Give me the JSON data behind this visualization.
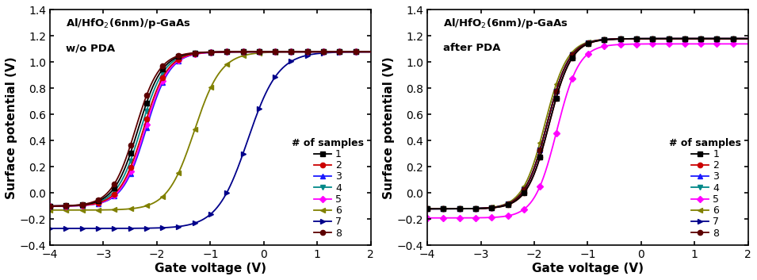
{
  "xlabel": "Gate voltage (V)",
  "ylabel": "Surface potential (V)",
  "legend_title": "# of samples",
  "xlim": [
    -4,
    2
  ],
  "ylim": [
    -0.4,
    1.4
  ],
  "xticks": [
    -4,
    -3,
    -2,
    -1,
    0,
    1,
    2
  ],
  "yticks": [
    -0.4,
    -0.2,
    0.0,
    0.2,
    0.4,
    0.6,
    0.8,
    1.0,
    1.2,
    1.4
  ],
  "sample_colors": [
    "#000000",
    "#cc0000",
    "#1a1aff",
    "#008888",
    "#ff00ff",
    "#808000",
    "#00008b",
    "#5c0000"
  ],
  "sample_markers": [
    "s",
    "o",
    "^",
    "v",
    "D",
    "<",
    ">",
    "o"
  ],
  "sample_labels": [
    "1",
    "2",
    "3",
    "4",
    "5",
    "6",
    "7",
    "8"
  ],
  "left_mids": [
    -2.35,
    -2.25,
    -2.2,
    -2.3,
    -2.22,
    -1.3,
    -0.3,
    -2.4
  ],
  "left_steps": [
    4.5,
    4.5,
    4.5,
    4.5,
    4.5,
    4.0,
    3.5,
    4.5
  ],
  "left_ymins": [
    -0.1,
    -0.1,
    -0.1,
    -0.1,
    -0.1,
    -0.13,
    -0.27,
    -0.1
  ],
  "left_ymaxs": [
    1.08,
    1.08,
    1.08,
    1.08,
    1.08,
    1.08,
    1.08,
    1.08
  ],
  "right_mids": [
    -1.72,
    -1.72,
    -1.76,
    -1.76,
    -1.58,
    -1.8,
    -1.76,
    -1.76
  ],
  "right_steps": [
    4.8,
    4.8,
    4.8,
    4.8,
    4.8,
    4.8,
    4.8,
    4.8
  ],
  "right_ymins": [
    -0.12,
    -0.12,
    -0.12,
    -0.12,
    -0.19,
    -0.12,
    -0.12,
    -0.12
  ],
  "right_ymaxs": [
    1.18,
    1.18,
    1.18,
    1.18,
    1.14,
    1.18,
    1.18,
    1.18
  ]
}
